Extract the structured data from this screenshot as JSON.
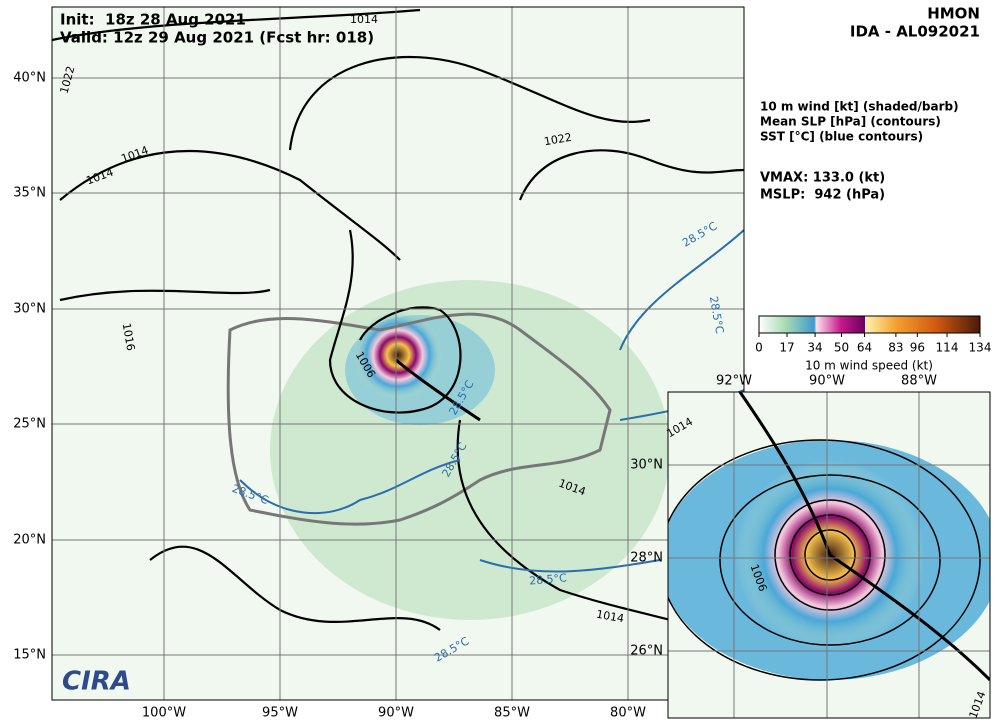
{
  "header": {
    "init": "Init:  18z 28 Aug 2021",
    "valid": "Valid: 12z 29 Aug 2021 (Fcst hr: 018)",
    "model": "HMON",
    "storm": "IDA - AL092021"
  },
  "legend": {
    "lines": [
      "10 m wind [kt] (shaded/barb)",
      "Mean SLP [hPa] (contours)",
      "SST [°C] (blue contours)"
    ],
    "vmax": "VMAX: 133.0 (kt)",
    "mslp": "MSLP:  942 (hPa)"
  },
  "colorbar": {
    "ticks": [
      0,
      17,
      34,
      50,
      64,
      83,
      96,
      114,
      134
    ],
    "label": "10 m wind speed (kt)"
  },
  "map": {
    "lon_labels": [
      "100°W",
      "95°W",
      "90°W",
      "85°W",
      "80°W"
    ],
    "lat_labels": [
      "40°N",
      "35°N",
      "30°N",
      "25°N",
      "20°N",
      "15°N"
    ],
    "contour_labels": [
      "1014",
      "1022",
      "1014",
      "1014",
      "1022",
      "1016",
      "1006",
      "28.5°C",
      "28.5°C",
      "28.5°C",
      "28.5°C",
      "28.5°C",
      "1014",
      "1014",
      "28.5°C",
      "28.5°C"
    ],
    "logo": "CIRA"
  },
  "inset": {
    "lon_labels": [
      "92°W",
      "90°W",
      "88°W"
    ],
    "lat_labels": [
      "30°N",
      "28°N",
      "26°N"
    ],
    "contour_labels": [
      "1014",
      "1006",
      "1014"
    ]
  }
}
